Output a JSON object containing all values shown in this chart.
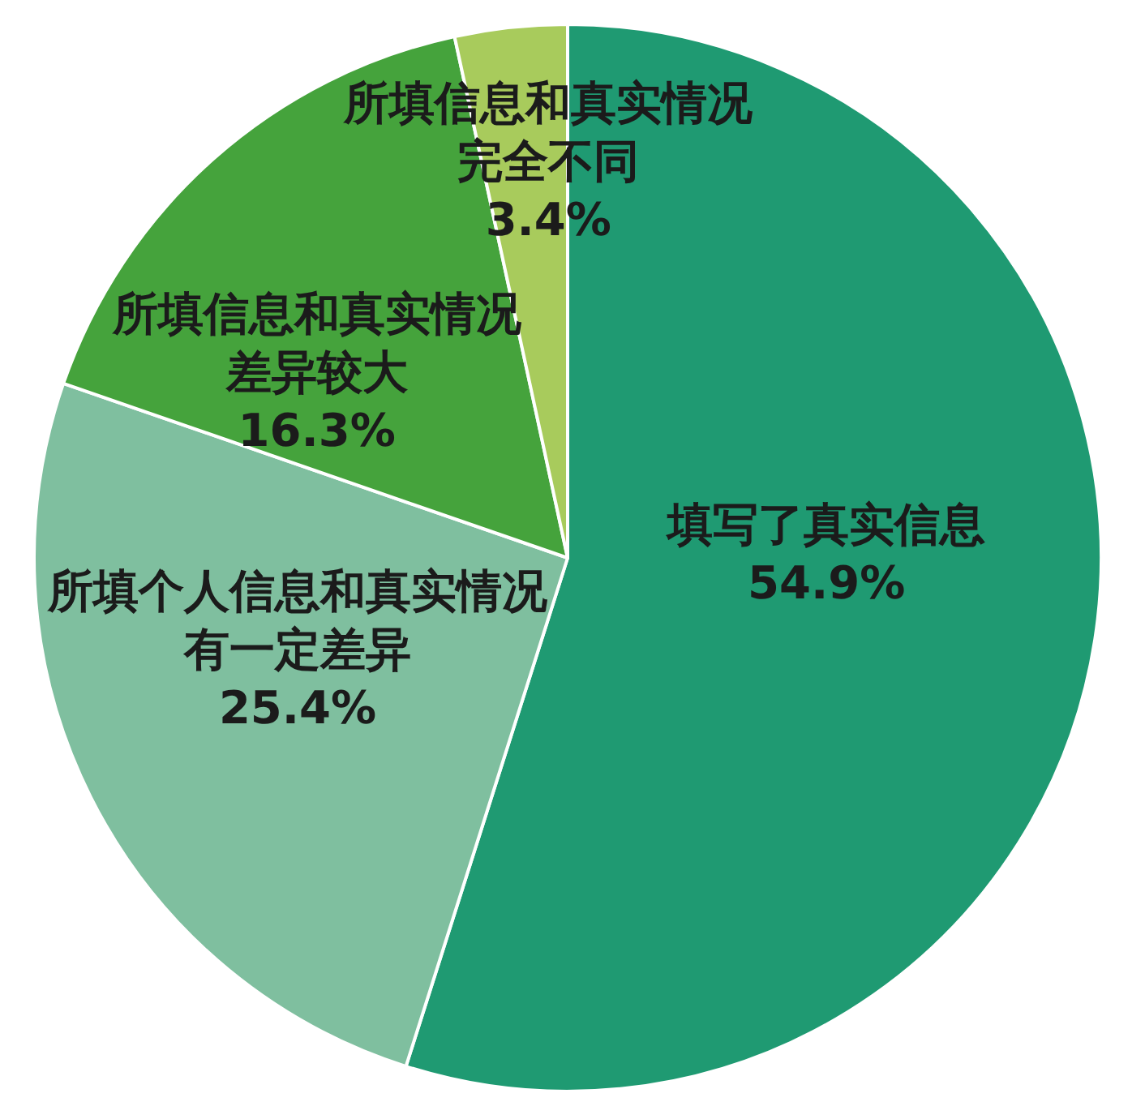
{
  "chart_data": {
    "type": "pie",
    "categories": [
      "填写了真实信息",
      "所填个人信息和真实情况有一定差异",
      "所填信息和真实情况差异较大",
      "所填信息和真实情况完全不同"
    ],
    "values": [
      54.9,
      25.4,
      16.3,
      3.4
    ],
    "value_labels": [
      "54.9%",
      "25.4%",
      "16.3%",
      "3.4%"
    ],
    "colors": [
      "#1f9a72",
      "#7fbf9f",
      "#45a33c",
      "#a8cb5c"
    ]
  }
}
